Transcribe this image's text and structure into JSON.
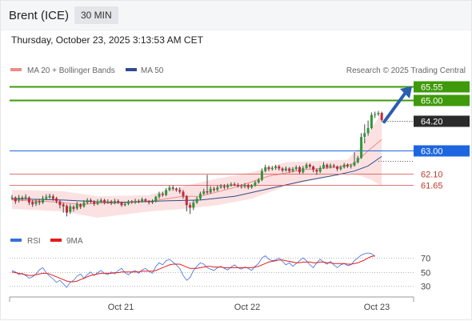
{
  "header": {
    "title": "Brent (ICE)",
    "timeframe": "30 MIN",
    "datetime": "Thursday, October 23, 2025 3:13:53 AM CET"
  },
  "legend": {
    "ma20_label": "MA 20 + Bollinger Bands",
    "ma20_color": "#f08a8a",
    "ma50_label": "MA 50",
    "ma50_color": "#2e4d8a",
    "credit": "Research © 2025 Trading Central"
  },
  "chart_data": [
    {
      "type": "candlestick",
      "title": "Brent (ICE) 30 MIN",
      "x": [
        "Oct 21",
        "Oct 22",
        "Oct 23"
      ],
      "ylim": [
        60.3,
        66.1
      ],
      "candles": [
        [
          61.15,
          61.15,
          61.25,
          61.05
        ],
        [
          61.15,
          61.0,
          61.2,
          60.9
        ],
        [
          61.05,
          61.15,
          61.25,
          60.95
        ],
        [
          61.15,
          61.12,
          61.22,
          61.02
        ],
        [
          61.12,
          61.18,
          61.28,
          61.07
        ],
        [
          61.15,
          60.95,
          61.2,
          60.85
        ],
        [
          60.98,
          60.88,
          61.05,
          60.78
        ],
        [
          60.9,
          61.0,
          61.08,
          60.82
        ],
        [
          61.0,
          60.95,
          61.1,
          60.85
        ],
        [
          60.95,
          61.12,
          61.22,
          60.9
        ],
        [
          61.1,
          61.18,
          61.28,
          61.05
        ],
        [
          61.15,
          61.22,
          61.3,
          61.1
        ],
        [
          61.2,
          61.1,
          61.28,
          61.02
        ],
        [
          61.12,
          61.0,
          61.18,
          60.92
        ],
        [
          61.0,
          60.85,
          61.05,
          60.72
        ],
        [
          60.88,
          60.8,
          60.95,
          60.55
        ],
        [
          60.82,
          60.55,
          60.88,
          60.4
        ],
        [
          60.58,
          60.8,
          60.88,
          60.5
        ],
        [
          60.78,
          60.7,
          60.85,
          60.6
        ],
        [
          60.72,
          60.9,
          60.98,
          60.65
        ],
        [
          60.88,
          60.78,
          60.92,
          60.7
        ],
        [
          60.8,
          60.95,
          61.05,
          60.75
        ],
        [
          60.95,
          61.05,
          61.12,
          60.88
        ],
        [
          61.05,
          61.0,
          61.12,
          60.92
        ],
        [
          61.0,
          60.9,
          61.05,
          60.82
        ],
        [
          60.9,
          61.0,
          61.08,
          60.85
        ],
        [
          61.0,
          61.05,
          61.12,
          60.95
        ],
        [
          61.05,
          60.95,
          61.1,
          60.88
        ],
        [
          60.95,
          61.0,
          61.08,
          60.9
        ],
        [
          61.0,
          60.92,
          61.05,
          60.85
        ],
        [
          60.92,
          61.02,
          61.1,
          60.88
        ],
        [
          61.02,
          60.95,
          61.08,
          60.9
        ],
        [
          60.95,
          60.85,
          61.0,
          60.78
        ],
        [
          60.85,
          60.9,
          60.98,
          60.8
        ],
        [
          60.9,
          61.0,
          61.05,
          60.85
        ],
        [
          61.0,
          60.95,
          61.05,
          60.9
        ],
        [
          60.95,
          61.02,
          61.1,
          60.9
        ],
        [
          61.02,
          60.98,
          61.08,
          60.92
        ],
        [
          60.98,
          61.08,
          61.15,
          60.95
        ],
        [
          61.08,
          61.02,
          61.12,
          60.96
        ],
        [
          61.02,
          60.95,
          61.05,
          60.88
        ],
        [
          60.95,
          61.0,
          61.08,
          60.9
        ],
        [
          61.0,
          61.18,
          61.22,
          60.95
        ],
        [
          61.18,
          61.3,
          61.38,
          61.1
        ],
        [
          61.3,
          61.25,
          61.38,
          61.18
        ],
        [
          61.25,
          61.45,
          61.52,
          61.2
        ],
        [
          61.45,
          61.55,
          61.62,
          61.4
        ],
        [
          61.55,
          61.5,
          61.62,
          61.42
        ],
        [
          61.5,
          61.45,
          61.55,
          61.38
        ],
        [
          61.45,
          61.38,
          61.55,
          61.3
        ],
        [
          61.38,
          61.2,
          61.45,
          61.1
        ],
        [
          61.2,
          60.85,
          61.25,
          60.6
        ],
        [
          60.85,
          60.75,
          60.95,
          60.5
        ],
        [
          60.75,
          60.95,
          61.05,
          60.65
        ],
        [
          60.95,
          61.1,
          61.18,
          60.9
        ],
        [
          61.1,
          61.3,
          61.38,
          61.05
        ],
        [
          61.3,
          61.4,
          61.5,
          61.25
        ],
        [
          61.4,
          61.35,
          62.05,
          61.28
        ],
        [
          61.35,
          61.5,
          61.6,
          61.3
        ],
        [
          61.5,
          61.45,
          61.58,
          61.38
        ],
        [
          61.45,
          61.55,
          61.62,
          61.4
        ],
        [
          61.55,
          61.6,
          61.68,
          61.5
        ],
        [
          61.6,
          61.55,
          61.68,
          61.48
        ],
        [
          61.55,
          61.62,
          61.7,
          61.5
        ],
        [
          61.62,
          61.68,
          61.75,
          61.58
        ],
        [
          61.68,
          61.65,
          61.75,
          61.6
        ],
        [
          61.65,
          61.6,
          61.72,
          61.55
        ],
        [
          61.6,
          61.58,
          61.68,
          61.5
        ],
        [
          61.58,
          61.65,
          61.72,
          61.52
        ],
        [
          61.65,
          61.55,
          61.7,
          61.48
        ],
        [
          61.55,
          61.62,
          61.68,
          61.5
        ],
        [
          61.62,
          61.75,
          61.82,
          61.58
        ],
        [
          61.75,
          61.85,
          61.92,
          61.7
        ],
        [
          61.85,
          62.2,
          62.3,
          61.8
        ],
        [
          62.2,
          62.35,
          62.45,
          62.15
        ],
        [
          62.35,
          62.28,
          62.42,
          62.2
        ],
        [
          62.28,
          62.32,
          62.4,
          62.22
        ],
        [
          62.32,
          62.38,
          62.45,
          62.25
        ],
        [
          62.38,
          62.3,
          62.45,
          62.22
        ],
        [
          62.3,
          62.22,
          62.35,
          62.15
        ],
        [
          62.22,
          62.3,
          62.38,
          62.18
        ],
        [
          62.3,
          62.2,
          62.35,
          62.12
        ],
        [
          62.2,
          62.28,
          62.35,
          62.15
        ],
        [
          62.28,
          62.35,
          62.42,
          62.22
        ],
        [
          62.35,
          62.15,
          62.4,
          62.08
        ],
        [
          62.15,
          62.32,
          62.4,
          62.1
        ],
        [
          62.32,
          62.45,
          62.52,
          62.28
        ],
        [
          62.45,
          62.38,
          62.5,
          62.3
        ],
        [
          62.38,
          62.25,
          62.42,
          62.15
        ],
        [
          62.25,
          62.18,
          62.3,
          62.05
        ],
        [
          62.18,
          62.32,
          62.4,
          62.12
        ],
        [
          62.32,
          62.45,
          62.55,
          62.28
        ],
        [
          62.45,
          62.35,
          62.5,
          62.28
        ],
        [
          62.35,
          62.42,
          62.5,
          62.3
        ],
        [
          62.42,
          62.38,
          62.48,
          62.32
        ],
        [
          62.38,
          62.28,
          62.42,
          62.2
        ],
        [
          62.28,
          62.35,
          62.42,
          62.22
        ],
        [
          62.35,
          62.45,
          62.52,
          62.3
        ],
        [
          62.45,
          62.38,
          62.5,
          62.32
        ],
        [
          62.38,
          62.42,
          62.48,
          62.3
        ],
        [
          62.42,
          62.55,
          62.95,
          62.38
        ],
        [
          62.55,
          62.72,
          62.8,
          62.5
        ],
        [
          62.72,
          63.55,
          63.7,
          62.68
        ],
        [
          63.55,
          63.7,
          64.05,
          63.3
        ],
        [
          63.7,
          63.9,
          64.2,
          63.6
        ],
        [
          63.9,
          64.42,
          64.52,
          63.85
        ],
        [
          64.42,
          64.45,
          64.55,
          64.3
        ],
        [
          64.45,
          64.5,
          64.58,
          64.38
        ],
        [
          64.5,
          64.22,
          64.55,
          64.15
        ]
      ],
      "levels": [
        65.55,
        65.0,
        64.2,
        63.0,
        62.1,
        61.65
      ],
      "level_labels": [
        "65.55",
        "65.00",
        "64.20",
        "63.00",
        "62.10",
        "61.65"
      ],
      "level_colors": [
        "#3f9a0b",
        "#3f9a0b",
        "#2b2b2b",
        "#1e66e0",
        "#d9534f",
        "#d9534f"
      ],
      "last_price": 64.2,
      "series": [
        {
          "name": "MA 20 + Bollinger Bands",
          "color": "#f08a8a"
        },
        {
          "name": "MA 50",
          "color": "#2e4d8a"
        }
      ],
      "ma20_approx": [
        [
          0,
          61.05
        ],
        [
          10,
          61.0
        ],
        [
          20,
          60.88
        ],
        [
          30,
          60.95
        ],
        [
          40,
          61.0
        ],
        [
          50,
          61.2
        ],
        [
          55,
          61.2
        ],
        [
          65,
          61.55
        ],
        [
          75,
          62.0
        ],
        [
          85,
          62.25
        ],
        [
          95,
          62.35
        ],
        [
          100,
          62.5
        ],
        [
          104,
          63.0
        ],
        [
          108,
          63.45
        ]
      ],
      "ma50_approx": [
        [
          0,
          61.1
        ],
        [
          15,
          61.05
        ],
        [
          30,
          60.95
        ],
        [
          45,
          61.02
        ],
        [
          55,
          61.05
        ],
        [
          65,
          61.2
        ],
        [
          75,
          61.5
        ],
        [
          85,
          61.8
        ],
        [
          95,
          62.05
        ],
        [
          100,
          62.2
        ],
        [
          104,
          62.4
        ],
        [
          108,
          62.78
        ]
      ],
      "bb_upper_approx": [
        [
          0,
          61.45
        ],
        [
          15,
          61.4
        ],
        [
          25,
          61.2
        ],
        [
          40,
          61.25
        ],
        [
          50,
          61.6
        ],
        [
          60,
          61.9
        ],
        [
          70,
          62.15
        ],
        [
          80,
          62.55
        ],
        [
          90,
          62.6
        ],
        [
          98,
          62.65
        ],
        [
          102,
          63.2
        ],
        [
          105,
          63.9
        ],
        [
          108,
          64.5
        ]
      ],
      "bb_lower_approx": [
        [
          0,
          60.7
        ],
        [
          15,
          60.6
        ],
        [
          25,
          60.35
        ],
        [
          40,
          60.6
        ],
        [
          50,
          60.7
        ],
        [
          60,
          60.85
        ],
        [
          70,
          61.1
        ],
        [
          80,
          61.6
        ],
        [
          90,
          61.9
        ],
        [
          98,
          62.15
        ],
        [
          102,
          62.0
        ],
        [
          105,
          61.85
        ],
        [
          108,
          61.6
        ]
      ]
    },
    {
      "type": "line",
      "title": "RSI",
      "series": [
        {
          "name": "RSI",
          "color": "#3a6ee0",
          "values": [
            52,
            50,
            46,
            48,
            45,
            41,
            43,
            47,
            53,
            56,
            49,
            44,
            40,
            35,
            38,
            33,
            28,
            35,
            38,
            44,
            47,
            41,
            46,
            50,
            45,
            49,
            52,
            48,
            46,
            50,
            47,
            52,
            55,
            49,
            46,
            50,
            52,
            48,
            53,
            55,
            51,
            48,
            58,
            63,
            60,
            66,
            68,
            64,
            60,
            55,
            45,
            38,
            42,
            52,
            58,
            63,
            61,
            56,
            54,
            52,
            56,
            58,
            55,
            53,
            57,
            60,
            56,
            54,
            57,
            55,
            52,
            58,
            62,
            70,
            73,
            68,
            66,
            67,
            70,
            65,
            60,
            63,
            58,
            62,
            66,
            70,
            66,
            60,
            56,
            63,
            68,
            64,
            61,
            65,
            60,
            56,
            60,
            62,
            59,
            60,
            66,
            70,
            74,
            76,
            77,
            76,
            72
          ]
        },
        {
          "name": "9MA",
          "color": "#e31b1b",
          "values": [
            50,
            49,
            48,
            47,
            46,
            45,
            45,
            46,
            47,
            48,
            48,
            47,
            45,
            43,
            41,
            39,
            37,
            36,
            36,
            37,
            39,
            41,
            43,
            45,
            46,
            47,
            48,
            48,
            48,
            48,
            49,
            49,
            50,
            50,
            50,
            50,
            50,
            50,
            51,
            51,
            51,
            51,
            52,
            54,
            56,
            58,
            60,
            61,
            61,
            61,
            59,
            57,
            55,
            55,
            55,
            56,
            57,
            58,
            58,
            57,
            57,
            57,
            56,
            56,
            56,
            56,
            56,
            56,
            56,
            56,
            56,
            57,
            58,
            60,
            62,
            64,
            65,
            66,
            67,
            67,
            66,
            65,
            64,
            63,
            63,
            64,
            64,
            64,
            63,
            63,
            64,
            64,
            63,
            63,
            62,
            62,
            62,
            62,
            61,
            61,
            62,
            63,
            65,
            67,
            70,
            72,
            73
          ]
        }
      ],
      "ylim": [
        20,
        85
      ],
      "yticks": [
        "70",
        "50",
        "30"
      ]
    }
  ]
}
